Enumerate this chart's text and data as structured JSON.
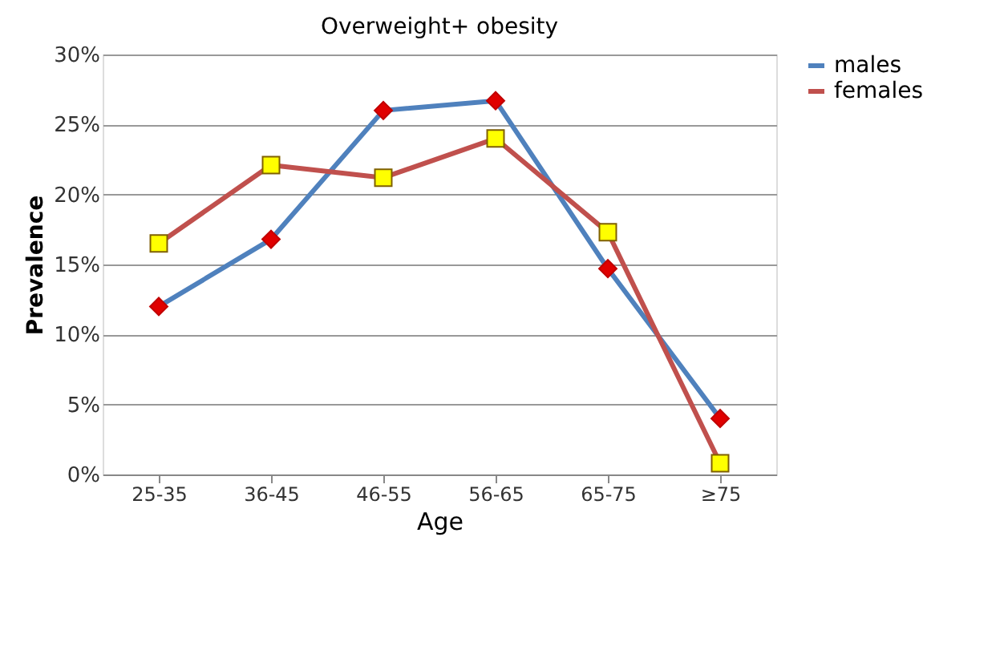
{
  "chart_data": {
    "type": "line",
    "title": "Overweight+ obesity",
    "xlabel": "Age",
    "ylabel": "Prevalence",
    "categories": [
      "25-35",
      "36-45",
      "46-55",
      "56-65",
      "65-75",
      "≥75"
    ],
    "series": [
      {
        "name": "males",
        "color": "#4f81bd",
        "marker": "diamond",
        "values": [
          12.0,
          16.8,
          26.0,
          26.7,
          14.7,
          4.0
        ]
      },
      {
        "name": "females",
        "color": "#c0504d",
        "marker": "square",
        "values": [
          16.5,
          22.1,
          21.2,
          24.0,
          17.3,
          0.8
        ]
      }
    ],
    "ylim": [
      0,
      30
    ],
    "yticks": [
      {
        "value": 0,
        "label": "0%"
      },
      {
        "value": 5,
        "label": "5%"
      },
      {
        "value": 10,
        "label": "10%"
      },
      {
        "value": 15,
        "label": "15%"
      },
      {
        "value": 20,
        "label": "20%"
      },
      {
        "value": 25,
        "label": "25%"
      },
      {
        "value": 30,
        "label": "30%"
      }
    ],
    "grid": "y",
    "legend": "right"
  }
}
